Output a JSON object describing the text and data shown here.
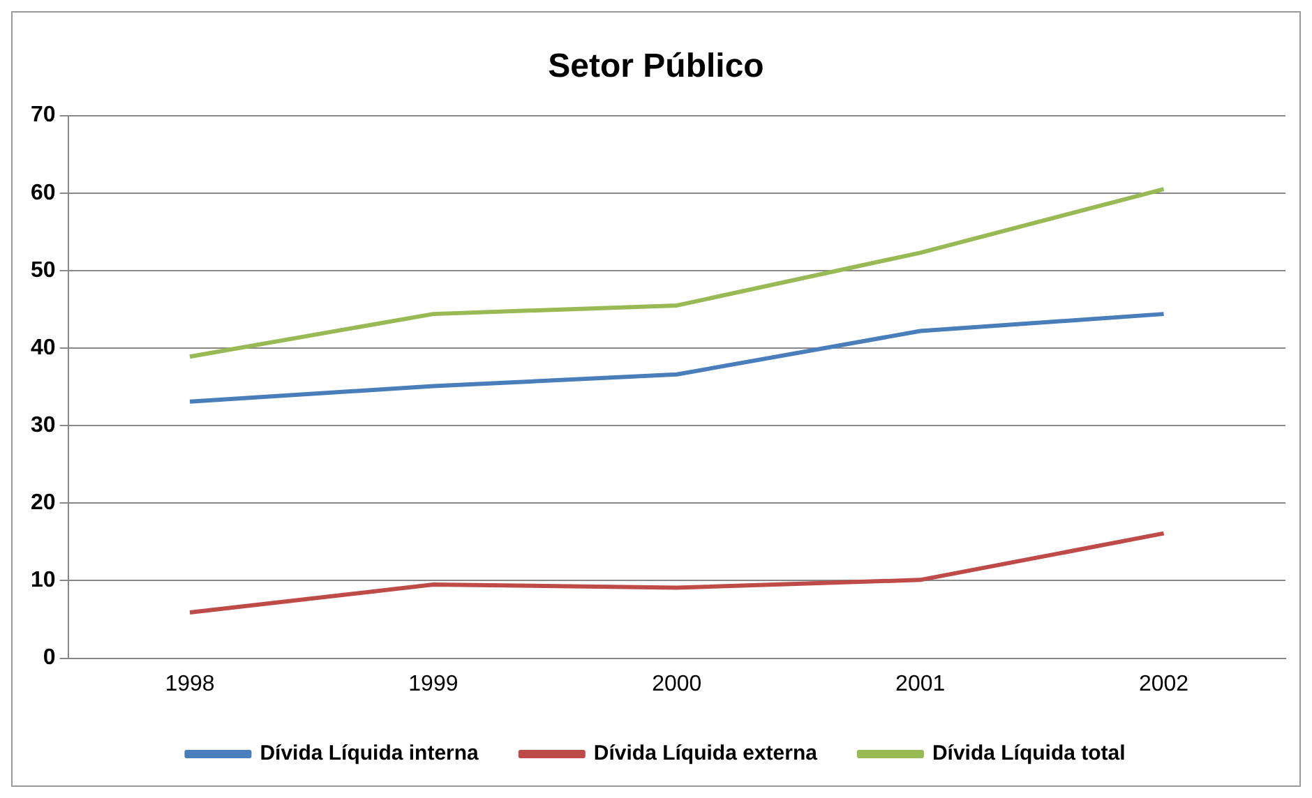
{
  "chart_data": {
    "type": "line",
    "title": "Setor Público",
    "categories": [
      "1998",
      "1999",
      "2000",
      "2001",
      "2002"
    ],
    "series": [
      {
        "name": "Dívida Líquida interna",
        "color": "#4a7ebb",
        "values": [
          33.1,
          35.1,
          36.6,
          42.2,
          44.4
        ]
      },
      {
        "name": "Dívida Líquida externa",
        "color": "#be4b48",
        "values": [
          5.9,
          9.5,
          9.1,
          10.1,
          16.1
        ]
      },
      {
        "name": "Dívida Líquida total",
        "color": "#98b954",
        "values": [
          38.9,
          44.4,
          45.5,
          52.3,
          60.5
        ]
      }
    ],
    "ylim": [
      0,
      70
    ],
    "yticks": [
      0,
      10,
      20,
      30,
      40,
      50,
      60,
      70
    ],
    "grid": "y",
    "legend": "bottom",
    "marker": "none",
    "line_style": "solid"
  }
}
